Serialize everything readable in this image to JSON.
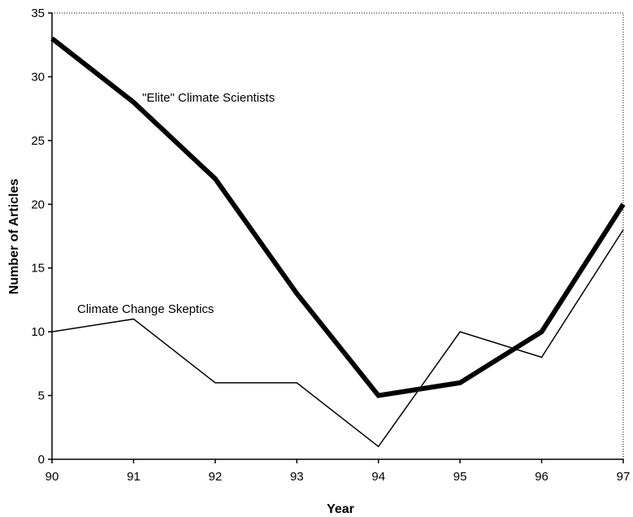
{
  "chart_data": {
    "type": "line",
    "categories": [
      "90",
      "91",
      "92",
      "93",
      "94",
      "95",
      "96",
      "97"
    ],
    "x": [
      90,
      91,
      92,
      93,
      94,
      95,
      96,
      97
    ],
    "xlim": [
      90,
      97
    ],
    "ylim": [
      0,
      35
    ],
    "yticks": [
      "0",
      "5",
      "10",
      "15",
      "20",
      "25",
      "30",
      "35"
    ],
    "xlabel": "Year",
    "ylabel": "Number of Articles",
    "grid": false,
    "legend": "none",
    "series": [
      {
        "name": "\"Elite\" Climate Scientists",
        "values": [
          33,
          28,
          22,
          13,
          5,
          6,
          10,
          20
        ],
        "color": "#000000"
      },
      {
        "name": "Climate Change Skeptics",
        "values": [
          10,
          11,
          6,
          6,
          1,
          10,
          8,
          18
        ],
        "color": "#000000"
      }
    ]
  }
}
